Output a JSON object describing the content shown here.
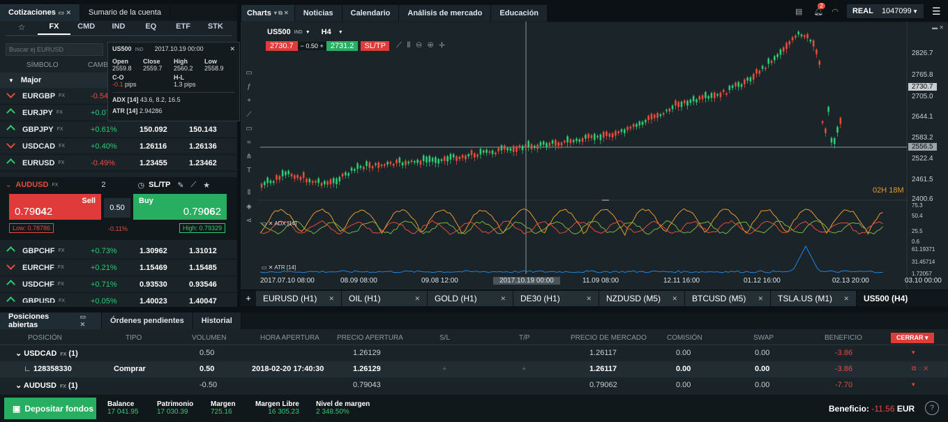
{
  "colors": {
    "green": "#2ecc71",
    "red": "#e74c3c",
    "orange": "#e89a2b",
    "blue": "#1e88e5"
  },
  "left_tabs": [
    "Cotizaciones",
    "Sumario de la cuenta"
  ],
  "asset_tabs": [
    "☆",
    "FX",
    "CMD",
    "IND",
    "EQ",
    "ETF",
    "STK"
  ],
  "search_placeholder": "Buscar ej EURUSD",
  "col_symbol": "SÍMBOLO",
  "col_change": "CAMBIAD",
  "group_major": "Major",
  "quotes_top": [
    {
      "sym": "EURGBP",
      "tag": "FX",
      "dir": "dn",
      "chg": "-0.54",
      "bid": "",
      "ask": ""
    },
    {
      "sym": "EURJPY",
      "tag": "FX",
      "dir": "up",
      "chg": "+0.07",
      "bid": "",
      "ask": ""
    },
    {
      "sym": "GBPJPY",
      "tag": "FX",
      "dir": "up",
      "chg": "+0.61%",
      "bid": "150.092",
      "ask": "150.143"
    },
    {
      "sym": "USDCAD",
      "tag": "FX",
      "dir": "dn",
      "chg": "+0.40%",
      "bid": "1.26116",
      "ask": "1.26136"
    },
    {
      "sym": "EURUSD",
      "tag": "FX",
      "dir": "up",
      "chg": "-0.49%",
      "bid": "1.23455",
      "ask": "1.23462"
    }
  ],
  "ticket": {
    "sym": "AUDUSD",
    "tag": "FX",
    "qty": "2",
    "sltp": "SL/TP",
    "sell_label": "Sell",
    "sell_price_a": "0.79",
    "sell_price_b": "04",
    "sell_price_c": "2",
    "buy_label": "Buy",
    "buy_price_a": "0.79",
    "buy_price_b": "06",
    "buy_price_c": "2",
    "spread": "0.50",
    "low": "Low: 0.78786",
    "chg": "-0.11%",
    "high": "High: 0.79329"
  },
  "quotes_bottom": [
    {
      "sym": "GBPCHF",
      "tag": "FX",
      "dir": "up",
      "chg": "+0.73%",
      "bid": "1.30962",
      "ask": "1.31012"
    },
    {
      "sym": "EURCHF",
      "tag": "FX",
      "dir": "dn",
      "chg": "+0.21%",
      "bid": "1.15469",
      "ask": "1.15485"
    },
    {
      "sym": "USDCHF",
      "tag": "FX",
      "dir": "up",
      "chg": "+0.71%",
      "bid": "0.93530",
      "ask": "0.93546"
    },
    {
      "sym": "GBPUSD",
      "tag": "FX",
      "dir": "up",
      "chg": "+0.05%",
      "bid": "1.40023",
      "ask": "1.40047"
    }
  ],
  "tooltip": {
    "sym": "US500",
    "tag": "IND",
    "date": "2017.10.19 00:00",
    "open_l": "Open",
    "open": "2559.8",
    "close_l": "Close",
    "close": "2559.7",
    "high_l": "High",
    "high": "2560.2",
    "low_l": "Low",
    "low": "2558.9",
    "co_l": "C-O",
    "co": "-0.1",
    "co_u": "pips",
    "hl_l": "H-L",
    "hl": "1.3 pips",
    "adx_l": "ADX [14]",
    "adx": "43.6, 8.2, 16.5",
    "atr_l": "ATR [14]",
    "atr": "2.94286"
  },
  "top_tabs": [
    "Charts",
    "Noticias",
    "Calendario",
    "Análisis de mercado",
    "Educación"
  ],
  "account": {
    "badge": "2",
    "mode": "REAL",
    "number": "1047099"
  },
  "chart": {
    "sym": "US500",
    "tag": "IND",
    "tf": "H4",
    "sell": "2730.7",
    "lot": "0.50",
    "buy": "2731.2",
    "sltp": "SL/TP",
    "countdown": "02H 18M",
    "prices": [
      "2826.7",
      "2765.8",
      "2705.0",
      "2644.1",
      "2583.2",
      "2522.4",
      "2461.5",
      "2400.6"
    ],
    "price_tag": "2730.7",
    "cross_tag": "2556.5",
    "adx_label": "ADX [14]",
    "adx_levels": [
      "75.3",
      "50.4",
      "25.5",
      "0.6"
    ],
    "atr_label": "ATR [14]",
    "atr_levels": [
      "61.19371",
      "31.45714",
      "1.72057"
    ],
    "dates": [
      "2017.07.10 08:00",
      "08.09 08:00",
      "09.08 12:00",
      "2017.10.19 00:00",
      "11.09 08:00",
      "12.11 16:00",
      "01.12 16:00",
      "02.13 20:00",
      "03.10 00:00"
    ]
  },
  "chart_tabs": [
    "EURUSD (H1)",
    "OIL (H1)",
    "GOLD (H1)",
    "DE30 (H1)",
    "NZDUSD (M5)",
    "BTCUSD (M5)",
    "TSLA.US (M1)",
    "US500 (H4)"
  ],
  "bottom_tabs": [
    "Posiciones abiertas",
    "Órdenes pendientes",
    "Historial"
  ],
  "pos_headers": [
    "POSICIÓN",
    "TIPO",
    "VOLUMEN",
    "HORA APERTURA",
    "PRECIO APERTURA",
    "S/L",
    "T/P",
    "PRECIO DE MERCADO",
    "COMISIÓN",
    "SWAP",
    "BENEFICIO"
  ],
  "close_btn": "CERRAR",
  "positions": [
    {
      "pos": "USDCAD",
      "tag": "FX",
      "cnt": "(1)",
      "type": "",
      "vol": "0.50",
      "time": "",
      "open": "1.26129",
      "sl": "",
      "tp": "",
      "mkt": "1.26117",
      "com": "0.00",
      "swap": "0.00",
      "profit": "-3.86"
    },
    {
      "pos": "128358330",
      "tag": "",
      "cnt": "",
      "type": "Comprar",
      "vol": "0.50",
      "time": "2018-02-20 17:40:30",
      "open": "1.26129",
      "sl": "+",
      "tp": "+",
      "mkt": "1.26117",
      "com": "0.00",
      "swap": "0.00",
      "profit": "-3.86"
    },
    {
      "pos": "AUDUSD",
      "tag": "FX",
      "cnt": "(1)",
      "type": "",
      "vol": "-0.50",
      "time": "",
      "open": "0.79043",
      "sl": "",
      "tp": "",
      "mkt": "0.79062",
      "com": "0.00",
      "swap": "0.00",
      "profit": "-7.70"
    }
  ],
  "footer": {
    "deposit": "Depositar fondos",
    "balance_l": "Balance",
    "balance": "17 041.95",
    "equity_l": "Patrimonio",
    "equity": "17 030.39",
    "margin_l": "Margen",
    "margin": "725.16",
    "free_l": "Margen Libre",
    "free": "16 305.23",
    "level_l": "Nivel de margen",
    "level": "2 348.50%",
    "profit_l": "Beneficio:",
    "profit": "-11.56",
    "ccy": "EUR"
  }
}
